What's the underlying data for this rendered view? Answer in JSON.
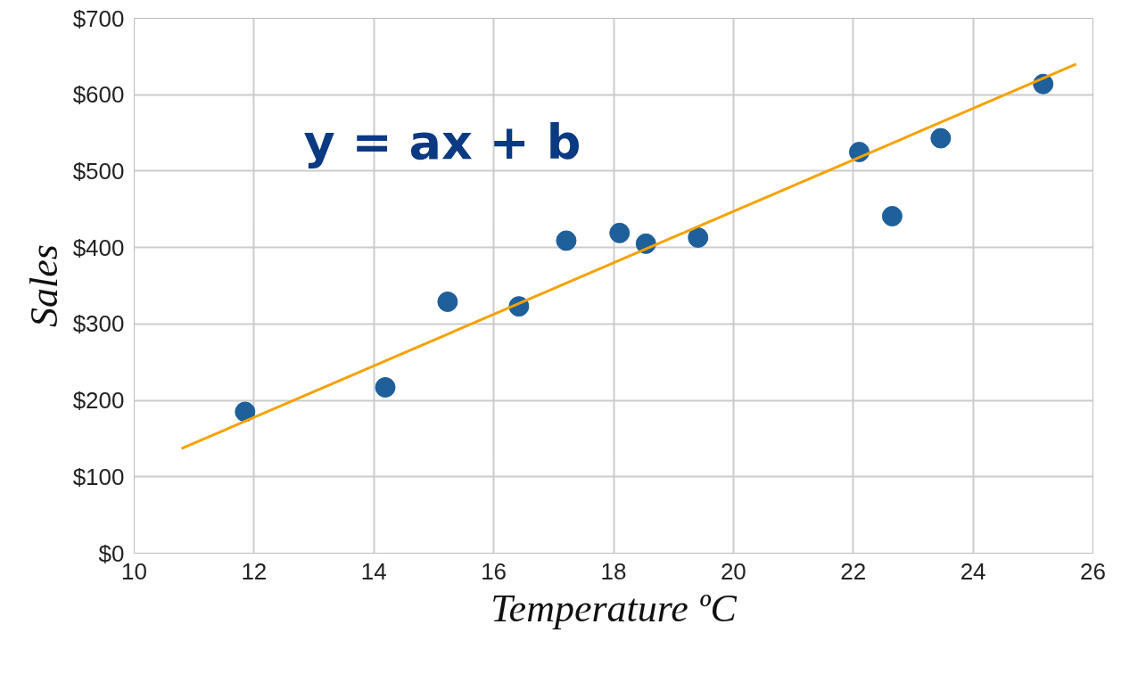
{
  "chart_data": {
    "type": "scatter",
    "xlabel": "Temperature ºC",
    "ylabel": "Sales",
    "xlim": [
      10,
      26
    ],
    "xticks": [
      10,
      12,
      14,
      16,
      18,
      20,
      22,
      24,
      26
    ],
    "ylim": [
      0,
      700
    ],
    "yticks": [
      {
        "value": 0,
        "label": "$0"
      },
      {
        "value": 100,
        "label": "$100"
      },
      {
        "value": 200,
        "label": "$200"
      },
      {
        "value": 300,
        "label": "$300"
      },
      {
        "value": 400,
        "label": "$400"
      },
      {
        "value": 500,
        "label": "$500"
      },
      {
        "value": 600,
        "label": "$600"
      },
      {
        "value": 700,
        "label": "$700"
      }
    ],
    "grid": true,
    "annotations": [
      "y = ax + b"
    ],
    "series": [
      {
        "marker": "circle",
        "color": "#1f5f9a",
        "x": [
          11.85,
          14.19,
          15.23,
          16.42,
          17.21,
          18.1,
          18.54,
          19.41,
          22.1,
          22.65,
          23.46,
          25.17
        ],
        "values": [
          185,
          217,
          329,
          323,
          409,
          419,
          405,
          413,
          525,
          441,
          543,
          614
        ]
      },
      {
        "type": "line",
        "color": "#f5a200",
        "x": [
          10.79,
          25.72
        ],
        "values": [
          137,
          640
        ]
      }
    ]
  }
}
